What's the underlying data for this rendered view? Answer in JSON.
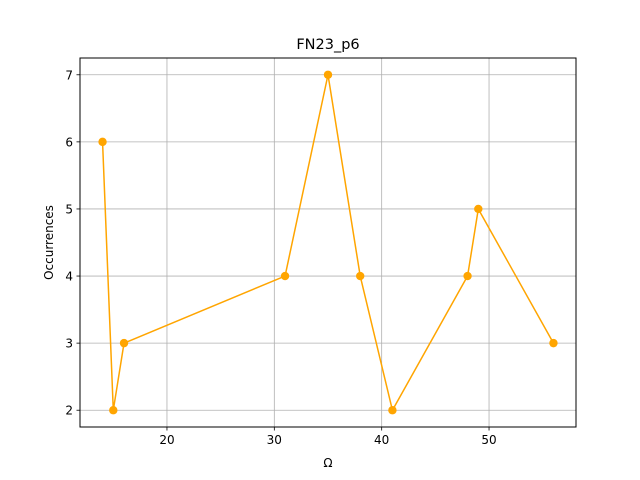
{
  "chart_data": {
    "type": "line",
    "title": "FN23_p6",
    "xlabel": "Ω",
    "ylabel": "Occurrences",
    "x": [
      14,
      15,
      16,
      31,
      35,
      38,
      41,
      48,
      49,
      56
    ],
    "series": [
      {
        "values": [
          6,
          2,
          3,
          4,
          7,
          4,
          2,
          4,
          5,
          3
        ],
        "color": "#ffa500",
        "marker": "circle"
      }
    ],
    "xlim": [
      11.9,
      58.1
    ],
    "ylim": [
      1.75,
      7.25
    ],
    "xticks": [
      20,
      30,
      40,
      50
    ],
    "yticks": [
      2,
      3,
      4,
      5,
      6,
      7
    ],
    "grid": true,
    "legend": "none"
  }
}
